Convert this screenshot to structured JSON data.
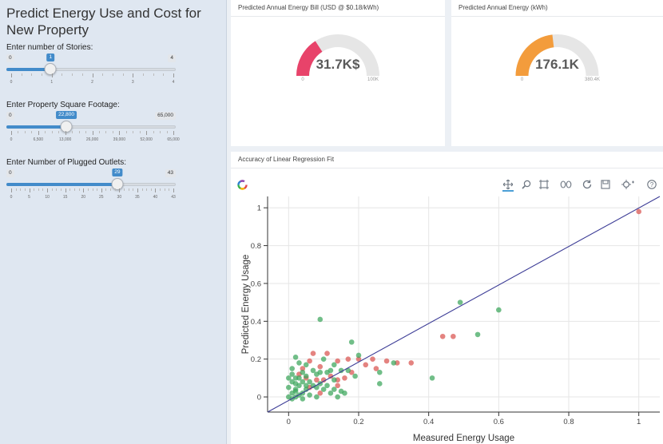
{
  "sidebar": {
    "title": "Predict Energy Use and Cost for New Property",
    "sliders": [
      {
        "label": "Enter number of Stories:",
        "min_label": "0",
        "max_label": "4",
        "value_label": "1",
        "min": 0,
        "max": 4,
        "value": 1,
        "tick_labels": [
          "0",
          "1",
          "2",
          "3",
          "4"
        ]
      },
      {
        "label": "Enter Property Square Footage:",
        "min_label": "0",
        "max_label": "65,000",
        "value_label": "22,800",
        "min": 0,
        "max": 65000,
        "value": 22800,
        "tick_labels": [
          "0",
          "6,500",
          "13,000",
          "26,000",
          "39,000",
          "52,000",
          "65,000"
        ]
      },
      {
        "label": "Enter Number of Plugged Outlets:",
        "min_label": "0",
        "max_label": "43",
        "value_label": "29",
        "min": 0,
        "max": 43,
        "value": 29,
        "tick_labels": [
          "0",
          "5",
          "10",
          "15",
          "20",
          "25",
          "30",
          "35",
          "40",
          "43"
        ]
      }
    ]
  },
  "gauges": [
    {
      "title": "Predicted Annual Energy Bill (USD @ $0.18/kWh)",
      "value_text": "31.7K$",
      "min_label": "0",
      "max_label": "100K",
      "fraction": 0.317,
      "color": "#e8436a",
      "track_color": "#e6e6e6"
    },
    {
      "title": "Predicted Annual Energy (kWh)",
      "value_text": "176.1K",
      "min_label": "0",
      "max_label": "380.4K",
      "fraction": 0.463,
      "color": "#f39c3c",
      "track_color": "#e6e6e6"
    }
  ],
  "regression_panel": {
    "title": "Accuracy of Linear Regression Fit",
    "toolbar_icons": [
      "bokeh-logo-icon",
      "pan-icon",
      "box-zoom-icon",
      "select-icon",
      "lasso-icon",
      "reset-icon",
      "save-icon",
      "hover-icon",
      "help-icon"
    ]
  },
  "chart_data": {
    "type": "scatter",
    "title": "",
    "xlabel": "Measured Energy Usage",
    "ylabel": "Predicted Energy Usage",
    "xlim": [
      -0.06,
      1.06
    ],
    "ylim": [
      -0.08,
      1.06
    ],
    "x_ticks": [
      0,
      0.2,
      0.4,
      0.6,
      0.8,
      1
    ],
    "x_tick_labels": [
      "0",
      "0.2",
      "0.4",
      "0.6",
      "0.8",
      "1"
    ],
    "y_ticks": [
      0,
      0.2,
      0.4,
      0.6,
      0.8,
      1
    ],
    "y_tick_labels": [
      "0",
      "0.2",
      "0.4",
      "0.6",
      "0.8",
      "1"
    ],
    "grid": true,
    "colors": {
      "over": "#d9534f",
      "under": "#3aa55a",
      "fit_line": "#3c3c96"
    },
    "fit_line": {
      "x": [
        -0.06,
        1.06
      ],
      "y": [
        -0.08,
        1.06
      ]
    },
    "series": [
      {
        "color_key": "over",
        "points": [
          [
            1.0,
            0.98
          ],
          [
            0.47,
            0.32
          ],
          [
            0.44,
            0.32
          ],
          [
            0.35,
            0.18
          ],
          [
            0.31,
            0.18
          ],
          [
            0.28,
            0.19
          ],
          [
            0.24,
            0.2
          ],
          [
            0.25,
            0.15
          ],
          [
            0.22,
            0.17
          ],
          [
            0.2,
            0.2
          ],
          [
            0.17,
            0.2
          ],
          [
            0.14,
            0.19
          ],
          [
            0.11,
            0.23
          ],
          [
            0.07,
            0.23
          ],
          [
            0.06,
            0.19
          ],
          [
            0.09,
            0.16
          ],
          [
            0.12,
            0.11
          ],
          [
            0.14,
            0.09
          ],
          [
            0.1,
            0.09
          ],
          [
            0.08,
            0.09
          ],
          [
            0.05,
            0.1
          ],
          [
            0.06,
            0.05
          ],
          [
            0.14,
            0.06
          ],
          [
            0.16,
            0.1
          ],
          [
            0.18,
            0.13
          ],
          [
            0.03,
            0.12
          ],
          [
            0.04,
            0.15
          ],
          [
            0.09,
            0.02
          ]
        ]
      },
      {
        "color_key": "under",
        "points": [
          [
            0.6,
            0.46
          ],
          [
            0.49,
            0.5
          ],
          [
            0.54,
            0.33
          ],
          [
            0.41,
            0.1
          ],
          [
            0.09,
            0.41
          ],
          [
            0.18,
            0.29
          ],
          [
            0.2,
            0.22
          ],
          [
            0.26,
            0.13
          ],
          [
            0.26,
            0.07
          ],
          [
            0.3,
            0.18
          ],
          [
            0.15,
            0.14
          ],
          [
            0.12,
            0.14
          ],
          [
            0.1,
            0.2
          ],
          [
            0.13,
            0.17
          ],
          [
            0.11,
            0.13
          ],
          [
            0.08,
            0.12
          ],
          [
            0.07,
            0.14
          ],
          [
            0.05,
            0.17
          ],
          [
            0.02,
            0.21
          ],
          [
            0.03,
            0.18
          ],
          [
            0.01,
            0.15
          ],
          [
            0.04,
            0.13
          ],
          [
            0.02,
            0.1
          ],
          [
            0.01,
            0.08
          ],
          [
            0.03,
            0.06
          ],
          [
            0.02,
            0.04
          ],
          [
            0.01,
            0.02
          ],
          [
            0.04,
            0.02
          ],
          [
            0.05,
            0.04
          ],
          [
            0.06,
            0.08
          ],
          [
            0.07,
            0.06
          ],
          [
            0.08,
            0.05
          ],
          [
            0.09,
            0.07
          ],
          [
            0.1,
            0.04
          ],
          [
            0.11,
            0.06
          ],
          [
            0.12,
            0.02
          ],
          [
            0.13,
            0.04
          ],
          [
            0.15,
            0.03
          ],
          [
            0.16,
            0.02
          ],
          [
            0.04,
            0.08
          ],
          [
            0.03,
            0.1
          ],
          [
            0.05,
            0.06
          ],
          [
            0.02,
            0.07
          ],
          [
            0.0,
            0.05
          ],
          [
            0.0,
            0.0
          ],
          [
            0.01,
            -0.01
          ],
          [
            0.02,
            0.0
          ],
          [
            0.03,
            0.01
          ],
          [
            0.06,
            0.01
          ],
          [
            0.08,
            0.0
          ],
          [
            0.04,
            -0.01
          ],
          [
            0.05,
            0.11
          ],
          [
            0.09,
            0.13
          ],
          [
            0.13,
            0.09
          ],
          [
            0.17,
            0.14
          ],
          [
            0.19,
            0.11
          ],
          [
            0.14,
            0.0
          ],
          [
            0.0,
            0.1
          ],
          [
            0.01,
            0.12
          ],
          [
            0.02,
            0.03
          ]
        ]
      }
    ]
  }
}
